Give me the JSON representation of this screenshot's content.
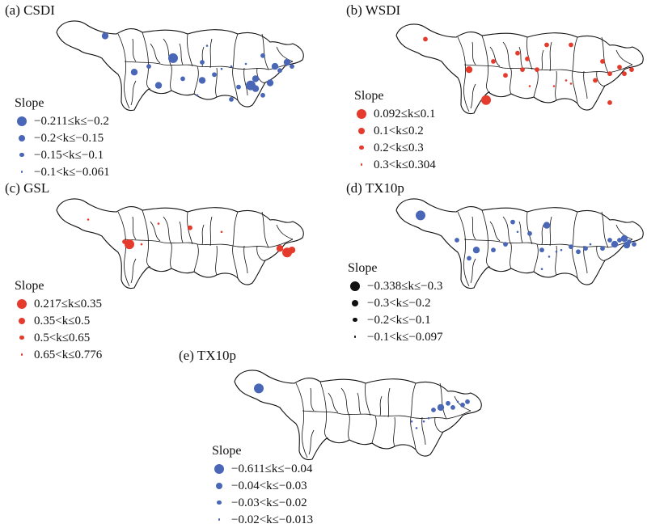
{
  "colors": {
    "blue": "#4a66b6",
    "red": "#e53b2c",
    "black": "#111111"
  },
  "panels": [
    {
      "id": "a",
      "title": "(a) CSDI",
      "legend_title": "Slope",
      "color": "blue",
      "legend": [
        "−0.211≤k≤−0.2",
        "−0.2<k≤−0.15",
        "−0.15<k≤−0.1",
        "−0.1<k≤−0.061"
      ],
      "stations": [
        [
          0.2,
          0.18,
          1
        ],
        [
          0.48,
          0.45,
          0
        ],
        [
          0.6,
          0.5,
          2
        ],
        [
          0.38,
          0.55,
          2
        ],
        [
          0.32,
          0.62,
          1
        ],
        [
          0.42,
          0.78,
          1
        ],
        [
          0.52,
          0.7,
          2
        ],
        [
          0.6,
          0.72,
          1
        ],
        [
          0.65,
          0.65,
          2
        ],
        [
          0.68,
          0.58,
          3
        ],
        [
          0.72,
          0.55,
          3
        ],
        [
          0.62,
          0.3,
          3
        ],
        [
          0.78,
          0.52,
          3
        ],
        [
          0.85,
          0.42,
          2
        ],
        [
          0.9,
          0.55,
          1
        ],
        [
          0.92,
          0.6,
          2
        ],
        [
          0.95,
          0.5,
          1
        ],
        [
          0.97,
          0.55,
          2
        ],
        [
          0.82,
          0.7,
          1
        ],
        [
          0.8,
          0.78,
          0
        ],
        [
          0.82,
          0.82,
          1
        ],
        [
          0.75,
          0.8,
          2
        ],
        [
          0.85,
          0.9,
          2
        ],
        [
          0.72,
          0.95,
          2
        ],
        [
          0.88,
          0.75,
          1
        ],
        [
          0.58,
          0.9,
          3
        ]
      ]
    },
    {
      "id": "b",
      "title": "(b) WSDI",
      "legend_title": "Slope",
      "color": "red",
      "legend": [
        "0.092≤k≤0.1",
        "0.1<k≤0.2",
        "0.2<k≤0.3",
        "0.3<k≤0.304"
      ],
      "stations": [
        [
          0.12,
          0.18,
          2
        ],
        [
          0.3,
          0.55,
          1
        ],
        [
          0.37,
          0.92,
          0
        ],
        [
          0.4,
          0.45,
          2
        ],
        [
          0.45,
          0.62,
          2
        ],
        [
          0.5,
          0.35,
          2
        ],
        [
          0.52,
          0.55,
          2
        ],
        [
          0.54,
          0.42,
          2
        ],
        [
          0.58,
          0.55,
          2
        ],
        [
          0.62,
          0.25,
          2
        ],
        [
          0.72,
          0.25,
          2
        ],
        [
          0.85,
          0.45,
          2
        ],
        [
          0.88,
          0.6,
          2
        ],
        [
          0.92,
          0.52,
          2
        ],
        [
          0.94,
          0.6,
          2
        ],
        [
          0.97,
          0.55,
          2
        ],
        [
          0.82,
          0.68,
          2
        ],
        [
          0.7,
          0.68,
          3
        ],
        [
          0.72,
          0.72,
          3
        ],
        [
          0.65,
          0.75,
          3
        ],
        [
          0.88,
          0.95,
          2
        ],
        [
          0.55,
          0.75,
          3
        ]
      ]
    },
    {
      "id": "c",
      "title": "(c) GSL",
      "legend_title": "Slope",
      "color": "red",
      "legend": [
        "0.217≤k≤0.35",
        "0.35<k≤0.5",
        "0.5<k≤0.65",
        "0.65<k≤0.776"
      ],
      "stations": [
        [
          0.13,
          0.25,
          3
        ],
        [
          0.28,
          0.52,
          2
        ],
        [
          0.3,
          0.55,
          0
        ],
        [
          0.35,
          0.55,
          3
        ],
        [
          0.42,
          0.3,
          3
        ],
        [
          0.55,
          0.35,
          2
        ],
        [
          0.68,
          0.4,
          3
        ],
        [
          0.92,
          0.6,
          1
        ],
        [
          0.95,
          0.65,
          0
        ],
        [
          0.97,
          0.62,
          1
        ]
      ]
    },
    {
      "id": "d",
      "title": "(d) TX10p",
      "legend_title": "Slope",
      "color": "blue",
      "legend": [
        "−0.338≤k≤−0.3",
        "−0.3<k≤−0.2",
        "−0.2<k≤−0.1",
        "−0.1<k≤−0.097"
      ],
      "stations": [
        [
          0.1,
          0.2,
          0
        ],
        [
          0.25,
          0.5,
          2
        ],
        [
          0.3,
          0.72,
          2
        ],
        [
          0.33,
          0.62,
          1
        ],
        [
          0.4,
          0.62,
          2
        ],
        [
          0.45,
          0.55,
          2
        ],
        [
          0.48,
          0.28,
          2
        ],
        [
          0.5,
          0.4,
          3
        ],
        [
          0.55,
          0.42,
          2
        ],
        [
          0.6,
          0.62,
          2
        ],
        [
          0.62,
          0.32,
          1
        ],
        [
          0.63,
          0.7,
          3
        ],
        [
          0.66,
          0.64,
          3
        ],
        [
          0.68,
          0.62,
          3
        ],
        [
          0.72,
          0.58,
          2
        ],
        [
          0.75,
          0.64,
          2
        ],
        [
          0.78,
          0.6,
          2
        ],
        [
          0.8,
          0.55,
          3
        ],
        [
          0.85,
          0.6,
          2
        ],
        [
          0.88,
          0.5,
          2
        ],
        [
          0.9,
          0.55,
          1
        ],
        [
          0.92,
          0.5,
          2
        ],
        [
          0.94,
          0.48,
          1
        ],
        [
          0.96,
          0.52,
          2
        ],
        [
          0.95,
          0.56,
          1
        ],
        [
          0.98,
          0.55,
          2
        ],
        [
          0.6,
          0.85,
          3
        ]
      ]
    },
    {
      "id": "e",
      "title": "(e) TX10p",
      "legend_title": "Slope",
      "color": "blue",
      "legend": [
        "−0.611≤k≤−0.04",
        "−0.04<k≤−0.03",
        "−0.03<k≤−0.02",
        "−0.02<k≤−0.013"
      ],
      "stations": [
        [
          0.1,
          0.22,
          0
        ],
        [
          0.82,
          0.48,
          2
        ],
        [
          0.85,
          0.45,
          1
        ],
        [
          0.88,
          0.4,
          2
        ],
        [
          0.9,
          0.45,
          2
        ],
        [
          0.92,
          0.38,
          3
        ],
        [
          0.94,
          0.42,
          2
        ],
        [
          0.96,
          0.38,
          2
        ],
        [
          0.78,
          0.62,
          3
        ],
        [
          0.75,
          0.7,
          3
        ],
        [
          0.8,
          0.58,
          3
        ],
        [
          0.73,
          0.62,
          3
        ]
      ]
    }
  ]
}
